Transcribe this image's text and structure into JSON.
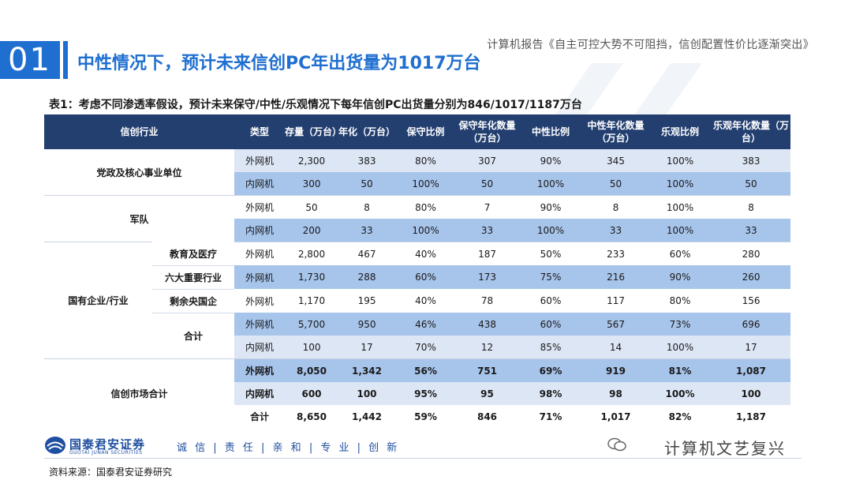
{
  "header": {
    "report_title": "计算机报告《自主可控大势不可阻挡，信创配置性价比逐渐突出》",
    "section_number": "01",
    "main_title": "中性情况下，预计未来信创PC年出货量为1017万台"
  },
  "table": {
    "caption": "表1：考虑不同渗透率假设，预计未来保守/中性/乐观情况下每年信创PC出货量分别为846/1017/1187万台",
    "headers": [
      "信创行业",
      "类型",
      "存量（万台）",
      "年化（万台）",
      "保守比例",
      "保守年化数量（万台）",
      "中性比例",
      "中性年化数量（万台）",
      "乐观比例",
      "乐观年化数量（万台）"
    ],
    "groups": [
      "党政及核心事业单位",
      "军队",
      "国有企业/行业",
      "信创市场合计"
    ],
    "subgroups": [
      "教育及医疗",
      "六大重要行业",
      "剩余央国企",
      "合计"
    ],
    "rows": [
      [
        "外网机",
        "2,300",
        "383",
        "80%",
        "307",
        "90%",
        "345",
        "100%",
        "383"
      ],
      [
        "内网机",
        "300",
        "50",
        "100%",
        "50",
        "100%",
        "50",
        "100%",
        "50"
      ],
      [
        "外网机",
        "50",
        "8",
        "80%",
        "7",
        "90%",
        "8",
        "100%",
        "8"
      ],
      [
        "内网机",
        "200",
        "33",
        "100%",
        "33",
        "100%",
        "33",
        "100%",
        "33"
      ],
      [
        "外网机",
        "2,800",
        "467",
        "40%",
        "187",
        "50%",
        "233",
        "60%",
        "280"
      ],
      [
        "外网机",
        "1,730",
        "288",
        "60%",
        "173",
        "75%",
        "216",
        "90%",
        "260"
      ],
      [
        "外网机",
        "1,170",
        "195",
        "40%",
        "78",
        "60%",
        "117",
        "80%",
        "156"
      ],
      [
        "外网机",
        "5,700",
        "950",
        "46%",
        "438",
        "60%",
        "567",
        "73%",
        "696"
      ],
      [
        "内网机",
        "100",
        "17",
        "70%",
        "12",
        "85%",
        "14",
        "100%",
        "17"
      ],
      [
        "外网机",
        "8,050",
        "1,342",
        "56%",
        "751",
        "69%",
        "919",
        "81%",
        "1,087"
      ],
      [
        "内网机",
        "600",
        "100",
        "95%",
        "95",
        "98%",
        "98",
        "100%",
        "100"
      ],
      [
        "合计",
        "8,650",
        "1,442",
        "59%",
        "846",
        "71%",
        "1,017",
        "82%",
        "1,187"
      ]
    ]
  },
  "footer": {
    "logo_name": "国泰君安证券",
    "logo_en": "GUOTAI JUNAN SECURITIES",
    "motto": "诚 信 | 责 任 | 亲 和 | 专 业 | 创 新",
    "wechat": "计算机文艺复兴",
    "source": "资料来源：国泰君安证券研究"
  },
  "colors": {
    "accent": "#1f6fd1",
    "header_bg": "#233f70",
    "band": "#a7c4eb",
    "light": "#dde6f5"
  }
}
